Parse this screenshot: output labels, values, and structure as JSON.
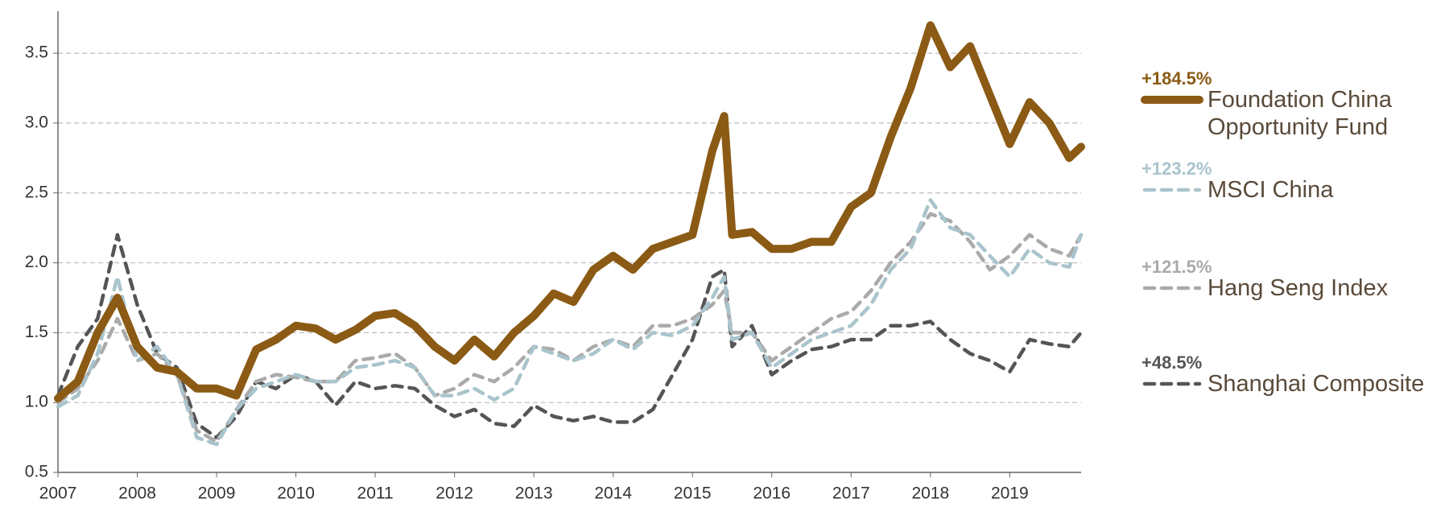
{
  "chart_data": {
    "type": "line",
    "x": [
      2007,
      2007.25,
      2007.5,
      2007.75,
      2008,
      2008.25,
      2008.5,
      2008.75,
      2009,
      2009.25,
      2009.5,
      2009.75,
      2010,
      2010.25,
      2010.5,
      2010.75,
      2011,
      2011.25,
      2011.5,
      2011.75,
      2012,
      2012.25,
      2012.5,
      2012.75,
      2013,
      2013.25,
      2013.5,
      2013.75,
      2014,
      2014.25,
      2014.5,
      2014.75,
      2015,
      2015.25,
      2015.4,
      2015.5,
      2015.75,
      2016,
      2016.25,
      2016.5,
      2016.75,
      2017,
      2017.25,
      2017.5,
      2017.75,
      2018,
      2018.25,
      2018.5,
      2018.75,
      2019,
      2019.25,
      2019.5,
      2019.75,
      2019.9
    ],
    "series": [
      {
        "name": "Foundation China Opportunity Fund",
        "change": "+184.5%",
        "color": "#8b5a14",
        "dashed": false,
        "values": [
          1.03,
          1.15,
          1.5,
          1.75,
          1.4,
          1.25,
          1.22,
          1.1,
          1.1,
          1.05,
          1.38,
          1.45,
          1.55,
          1.53,
          1.45,
          1.52,
          1.62,
          1.64,
          1.55,
          1.4,
          1.3,
          1.45,
          1.33,
          1.5,
          1.62,
          1.78,
          1.72,
          1.95,
          2.05,
          1.95,
          2.1,
          2.15,
          2.2,
          2.8,
          3.05,
          2.2,
          2.22,
          2.1,
          2.1,
          2.15,
          2.15,
          2.4,
          2.5,
          2.9,
          3.25,
          3.7,
          3.4,
          3.55,
          3.2,
          2.85,
          3.15,
          3.0,
          2.75,
          2.83
        ]
      },
      {
        "name": "MSCI China",
        "change": "+123.2%",
        "color": "#a9c4cc",
        "dashed": true,
        "values": [
          0.97,
          1.05,
          1.35,
          1.9,
          1.3,
          1.4,
          1.2,
          0.75,
          0.7,
          0.95,
          1.1,
          1.15,
          1.2,
          1.15,
          1.15,
          1.25,
          1.27,
          1.3,
          1.25,
          1.05,
          1.05,
          1.1,
          1.02,
          1.1,
          1.4,
          1.35,
          1.3,
          1.35,
          1.45,
          1.38,
          1.5,
          1.48,
          1.55,
          1.75,
          1.9,
          1.45,
          1.5,
          1.25,
          1.35,
          1.45,
          1.5,
          1.55,
          1.7,
          1.95,
          2.1,
          2.45,
          2.25,
          2.2,
          2.05,
          1.9,
          2.1,
          2.0,
          1.97,
          2.2
        ]
      },
      {
        "name": "Hang Seng Index",
        "change": "+121.5%",
        "color": "#aaaaaa",
        "dashed": true,
        "values": [
          1.0,
          1.1,
          1.3,
          1.6,
          1.3,
          1.35,
          1.2,
          0.8,
          0.72,
          0.95,
          1.15,
          1.2,
          1.18,
          1.15,
          1.15,
          1.3,
          1.32,
          1.35,
          1.25,
          1.05,
          1.1,
          1.2,
          1.15,
          1.25,
          1.4,
          1.38,
          1.3,
          1.4,
          1.45,
          1.4,
          1.55,
          1.55,
          1.6,
          1.7,
          1.8,
          1.5,
          1.5,
          1.3,
          1.4,
          1.5,
          1.6,
          1.65,
          1.8,
          2.0,
          2.15,
          2.35,
          2.3,
          2.15,
          1.95,
          2.05,
          2.2,
          2.1,
          2.05,
          2.2
        ]
      },
      {
        "name": "Shanghai Composite",
        "change": "+48.5%",
        "color": "#555555",
        "dashed": true,
        "values": [
          1.05,
          1.4,
          1.6,
          2.2,
          1.7,
          1.35,
          1.25,
          0.85,
          0.75,
          0.9,
          1.15,
          1.1,
          1.2,
          1.15,
          0.98,
          1.15,
          1.1,
          1.12,
          1.1,
          0.98,
          0.9,
          0.95,
          0.85,
          0.83,
          0.98,
          0.9,
          0.87,
          0.9,
          0.86,
          0.86,
          0.95,
          1.2,
          1.45,
          1.9,
          1.95,
          1.4,
          1.55,
          1.2,
          1.3,
          1.38,
          1.4,
          1.45,
          1.45,
          1.55,
          1.55,
          1.58,
          1.45,
          1.35,
          1.3,
          1.22,
          1.45,
          1.42,
          1.4,
          1.5
        ]
      }
    ],
    "xlim": [
      2007,
      2019.9
    ],
    "xticks": [
      2007,
      2008,
      2009,
      2010,
      2011,
      2012,
      2013,
      2014,
      2015,
      2016,
      2017,
      2018,
      2019
    ],
    "ylim": [
      0.5,
      3.8
    ],
    "yticks": [
      0.5,
      {
        "value": 1,
        "label": "1.0"
      },
      1.5,
      {
        "value": 2,
        "label": "2.0"
      },
      2.5,
      {
        "value": 3,
        "label": "3.0"
      },
      3.5
    ],
    "grid": true
  }
}
